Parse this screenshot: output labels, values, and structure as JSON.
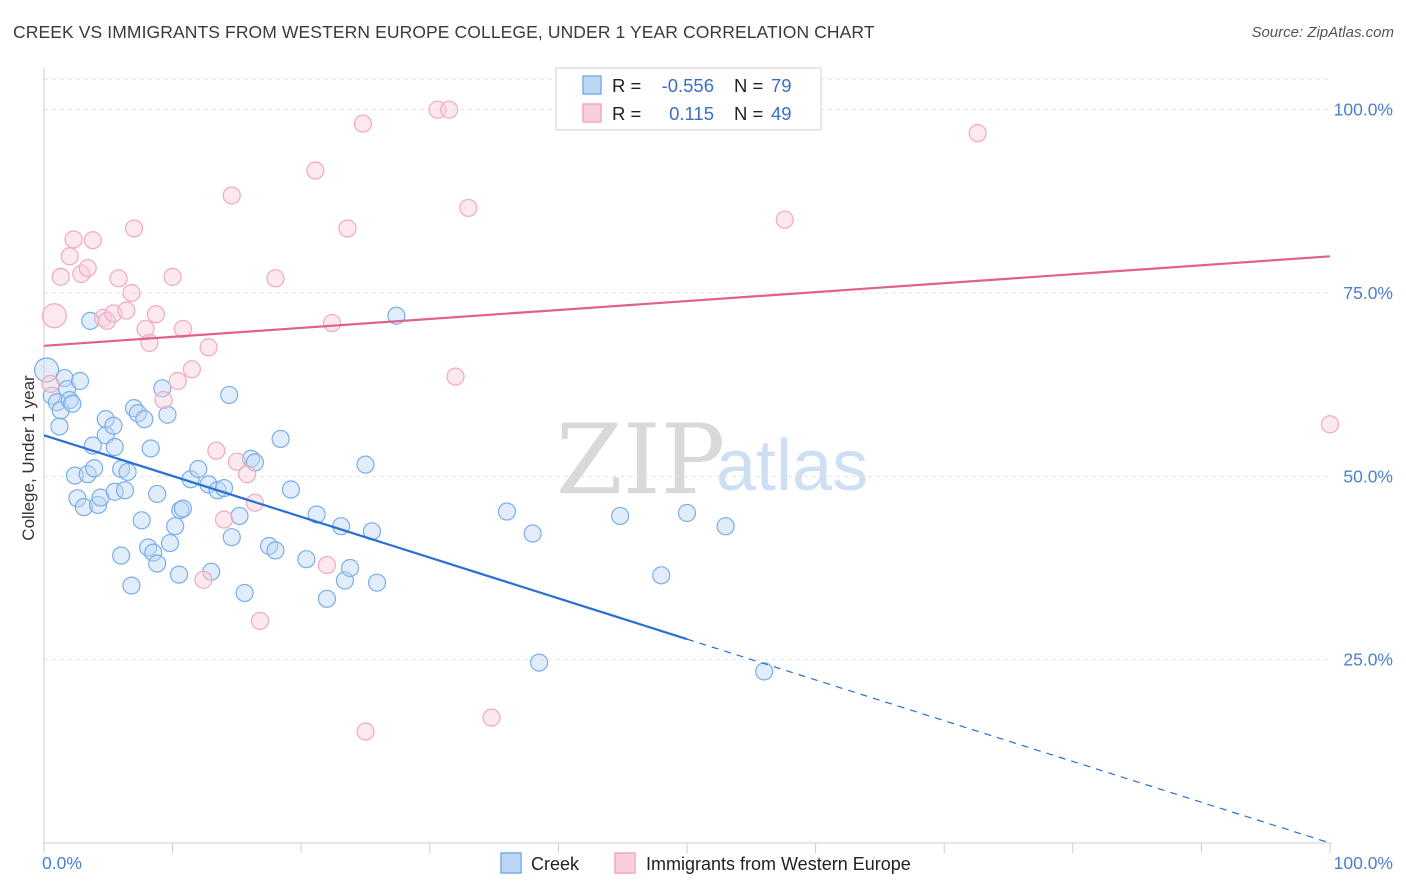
{
  "title": "CREEK VS IMMIGRANTS FROM WESTERN EUROPE COLLEGE, UNDER 1 YEAR CORRELATION CHART",
  "source": "Source: ZipAtlas.com",
  "watermark": {
    "zip": "ZIP",
    "atlas": "atlas"
  },
  "legend_top": [
    {
      "r_label": "R =",
      "r_value": "-0.556",
      "n_label": "N =",
      "n_value": "79"
    },
    {
      "r_label": "R =",
      "r_value": "0.115",
      "n_label": "N =",
      "n_value": "49"
    }
  ],
  "legend_bottom": [
    {
      "label": "Creek"
    },
    {
      "label": "Immigrants from Western Europe"
    }
  ],
  "chart_data": {
    "type": "scatter",
    "xlabel": "",
    "ylabel": "College, Under 1 year",
    "xlim": [
      0,
      100
    ],
    "ylim": [
      0,
      105
    ],
    "x_tick_labels": [
      {
        "value": 0,
        "label": "0.0%"
      },
      {
        "value": 100,
        "label": "100.0%"
      }
    ],
    "y_tick_labels": [
      {
        "value": 25,
        "label": "25.0%"
      },
      {
        "value": 50,
        "label": "50.0%"
      },
      {
        "value": 75,
        "label": "75.0%"
      },
      {
        "value": 100,
        "label": "100.0%"
      }
    ],
    "grid": "horizontal-dashed",
    "legend_position": "top-center",
    "series": [
      {
        "name": "Creek",
        "color": "#7aaee8",
        "line_color": "#2b6fd0",
        "trend": {
          "x0": 0,
          "y0": 55.6,
          "x1": 50,
          "y1": 27.8,
          "dashed_to_x": 100,
          "dashed_to_y": 0
        },
        "points": [
          [
            0.2,
            64.5
          ],
          [
            0.6,
            61.0
          ],
          [
            1.0,
            60.1
          ],
          [
            1.2,
            56.8
          ],
          [
            1.3,
            59.0
          ],
          [
            1.6,
            63.4
          ],
          [
            1.8,
            61.9
          ],
          [
            2.0,
            60.4
          ],
          [
            2.2,
            59.9
          ],
          [
            2.8,
            63.0
          ],
          [
            2.6,
            47.0
          ],
          [
            2.4,
            50.1
          ],
          [
            3.1,
            45.8
          ],
          [
            3.4,
            50.3
          ],
          [
            3.8,
            54.2
          ],
          [
            3.9,
            51.1
          ],
          [
            3.6,
            71.2
          ],
          [
            4.2,
            46.1
          ],
          [
            4.4,
            47.1
          ],
          [
            4.8,
            55.6
          ],
          [
            4.8,
            57.8
          ],
          [
            5.4,
            56.9
          ],
          [
            5.5,
            54.0
          ],
          [
            5.5,
            47.9
          ],
          [
            6.0,
            51.0
          ],
          [
            6.3,
            48.1
          ],
          [
            6.0,
            39.2
          ],
          [
            6.8,
            35.1
          ],
          [
            6.5,
            50.6
          ],
          [
            7.0,
            59.3
          ],
          [
            7.3,
            58.6
          ],
          [
            7.6,
            44.0
          ],
          [
            7.8,
            57.8
          ],
          [
            8.1,
            40.3
          ],
          [
            8.3,
            53.8
          ],
          [
            8.5,
            39.6
          ],
          [
            8.8,
            47.6
          ],
          [
            8.8,
            38.1
          ],
          [
            9.2,
            62.0
          ],
          [
            9.6,
            58.4
          ],
          [
            9.8,
            40.9
          ],
          [
            10.2,
            43.2
          ],
          [
            10.6,
            45.4
          ],
          [
            10.5,
            36.6
          ],
          [
            10.8,
            45.6
          ],
          [
            11.4,
            49.6
          ],
          [
            12.0,
            51.0
          ],
          [
            12.8,
            48.9
          ],
          [
            13.0,
            37.0
          ],
          [
            13.5,
            48.1
          ],
          [
            14.0,
            48.4
          ],
          [
            14.4,
            61.1
          ],
          [
            14.6,
            41.7
          ],
          [
            15.2,
            44.6
          ],
          [
            15.6,
            34.1
          ],
          [
            16.1,
            52.4
          ],
          [
            16.4,
            51.9
          ],
          [
            17.5,
            40.5
          ],
          [
            18.0,
            39.9
          ],
          [
            18.4,
            55.1
          ],
          [
            19.2,
            48.2
          ],
          [
            20.4,
            38.7
          ],
          [
            21.2,
            44.8
          ],
          [
            22.0,
            33.3
          ],
          [
            23.1,
            43.2
          ],
          [
            23.4,
            35.8
          ],
          [
            23.8,
            37.5
          ],
          [
            25.0,
            51.6
          ],
          [
            25.5,
            42.5
          ],
          [
            25.9,
            35.5
          ],
          [
            27.4,
            71.9
          ],
          [
            36.0,
            45.2
          ],
          [
            38.0,
            42.2
          ],
          [
            38.5,
            24.6
          ],
          [
            48.0,
            36.5
          ],
          [
            50.0,
            45.0
          ],
          [
            53.0,
            43.2
          ],
          [
            56.0,
            23.4
          ],
          [
            44.8,
            44.6
          ]
        ]
      },
      {
        "name": "Immigrants from Western Europe",
        "color": "#f3a8c0",
        "line_color": "#e06090",
        "trend": {
          "x0": 0,
          "y0": 67.8,
          "x1": 100,
          "y1": 80.0
        },
        "points": [
          [
            0.5,
            62.6
          ],
          [
            0.8,
            71.9
          ],
          [
            1.3,
            77.2
          ],
          [
            2.0,
            80.0
          ],
          [
            2.3,
            82.3
          ],
          [
            2.9,
            77.6
          ],
          [
            3.4,
            78.4
          ],
          [
            3.8,
            82.2
          ],
          [
            5.8,
            77.0
          ],
          [
            4.6,
            71.6
          ],
          [
            4.9,
            71.2
          ],
          [
            5.4,
            72.2
          ],
          [
            6.4,
            72.6
          ],
          [
            6.8,
            75.0
          ],
          [
            7.0,
            83.8
          ],
          [
            7.9,
            70.1
          ],
          [
            8.2,
            68.2
          ],
          [
            8.7,
            72.1
          ],
          [
            9.3,
            60.4
          ],
          [
            10.0,
            77.2
          ],
          [
            10.4,
            63.0
          ],
          [
            10.8,
            70.1
          ],
          [
            11.5,
            64.6
          ],
          [
            12.4,
            35.9
          ],
          [
            12.8,
            67.6
          ],
          [
            13.4,
            53.5
          ],
          [
            14.0,
            44.1
          ],
          [
            14.6,
            88.3
          ],
          [
            15.0,
            52.0
          ],
          [
            15.8,
            50.3
          ],
          [
            16.4,
            46.4
          ],
          [
            16.8,
            30.3
          ],
          [
            18.0,
            77.0
          ],
          [
            21.1,
            91.7
          ],
          [
            22.0,
            37.9
          ],
          [
            22.4,
            70.9
          ],
          [
            23.6,
            83.8
          ],
          [
            24.8,
            98.1
          ],
          [
            25.0,
            15.2
          ],
          [
            30.6,
            100.0
          ],
          [
            31.5,
            100.0
          ],
          [
            32.0,
            63.6
          ],
          [
            33.0,
            86.6
          ],
          [
            34.8,
            17.1
          ],
          [
            47.6,
            100.0
          ],
          [
            49.0,
            100.0
          ],
          [
            57.6,
            85.0
          ],
          [
            72.6,
            96.8
          ],
          [
            100.0,
            57.1
          ]
        ]
      }
    ]
  }
}
